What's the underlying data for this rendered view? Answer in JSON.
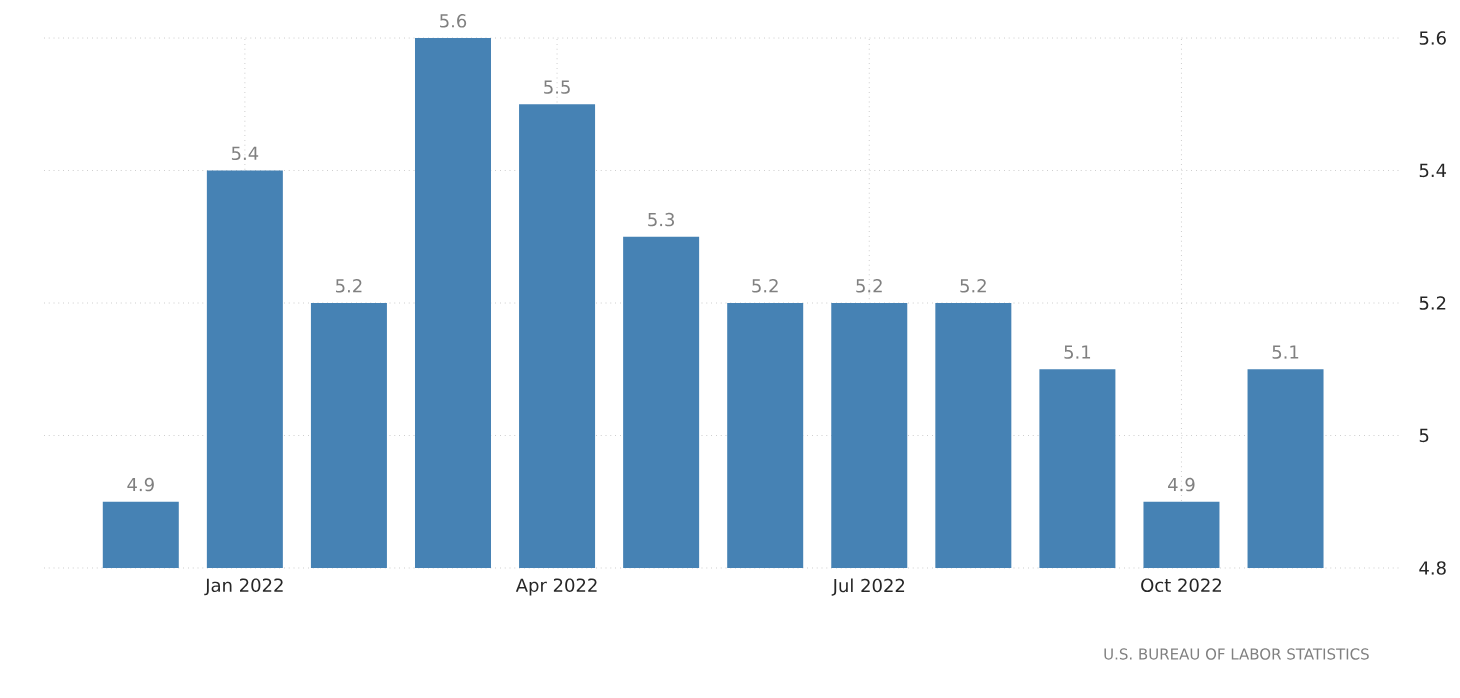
{
  "chart_data": {
    "type": "bar",
    "categories": [
      null,
      "Jan 2022",
      null,
      null,
      "Apr 2022",
      null,
      null,
      "Jul 2022",
      null,
      null,
      "Oct 2022",
      null
    ],
    "values": [
      4.9,
      5.4,
      5.2,
      5.6,
      5.5,
      5.3,
      5.2,
      5.2,
      5.2,
      5.1,
      4.9,
      5.1
    ],
    "color": "#4682b4",
    "ylim": [
      4.8,
      5.6
    ],
    "yticks": [
      4.8,
      5,
      5.2,
      5.4,
      5.6
    ],
    "grid": true,
    "data_labels": true,
    "annotations": [
      "U.S. BUREAU OF LABOR STATISTICS"
    ]
  }
}
